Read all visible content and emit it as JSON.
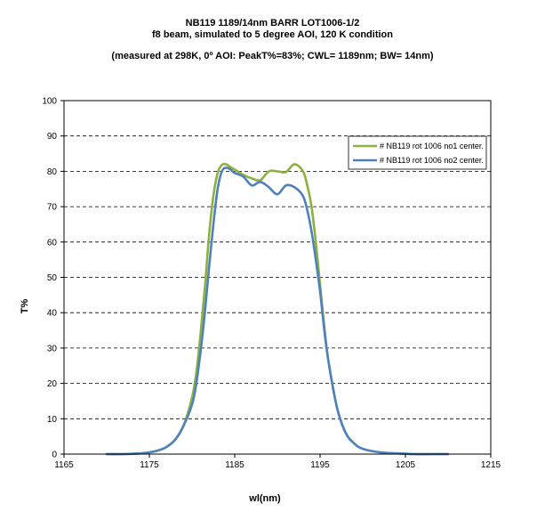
{
  "chart_data": {
    "type": "line",
    "title_lines": [
      "NB119  1189/14nm BARR LOT1006-1/2",
      "f8 beam, simulated to 5 degree AOI, 120 K condition",
      "(measured at 298K, 0º AOI:  PeakT%=83%; CWL= 1189nm; BW= 14nm)"
    ],
    "xlabel": "wl(nm)",
    "ylabel": "T%",
    "xlim": [
      1165,
      1215
    ],
    "ylim": [
      0,
      100
    ],
    "xticks": [
      1165,
      1175,
      1185,
      1195,
      1205,
      1215
    ],
    "yticks": [
      0,
      10,
      20,
      30,
      40,
      50,
      60,
      70,
      80,
      90,
      100
    ],
    "grid": "horizontal dashed",
    "legend_position": "top-right",
    "series": [
      {
        "name": "# NB119 rot 1006 no1 center.",
        "color": "#8DB13F",
        "x": [
          1170,
          1172,
          1174,
          1175,
          1176,
          1177,
          1178,
          1179,
          1180,
          1180.5,
          1181,
          1181.5,
          1182,
          1182.5,
          1183,
          1183.5,
          1184,
          1184.5,
          1185,
          1186,
          1187,
          1188,
          1189,
          1190,
          1191,
          1192,
          1193,
          1193.5,
          1194,
          1194.5,
          1195,
          1195.5,
          1196,
          1197,
          1198,
          1199,
          1200,
          1202,
          1204,
          1206,
          1208,
          1210
        ],
        "y": [
          0,
          0,
          0.2,
          0.5,
          1,
          2,
          4,
          8,
          16,
          23,
          34,
          47,
          62,
          73,
          79.5,
          81.8,
          82,
          81.2,
          80.5,
          79,
          78,
          77.5,
          80,
          80,
          79.8,
          82,
          80,
          76,
          70,
          60,
          48,
          36,
          26,
          13,
          6,
          3,
          1.5,
          0.5,
          0.2,
          0,
          0,
          0
        ]
      },
      {
        "name": "# NB119 rot 1006 no2 center.",
        "color": "#4F81BD",
        "x": [
          1170,
          1172,
          1174,
          1175,
          1176,
          1177,
          1178,
          1179,
          1180,
          1180.5,
          1181,
          1181.5,
          1182,
          1182.5,
          1183,
          1183.5,
          1184,
          1184.5,
          1185,
          1186,
          1187,
          1188,
          1189,
          1190,
          1191,
          1192,
          1193,
          1193.5,
          1194,
          1194.5,
          1195,
          1195.5,
          1196,
          1197,
          1198,
          1199,
          1200,
          1202,
          1204,
          1206,
          1208,
          1210
        ],
        "y": [
          0,
          0,
          0.2,
          0.5,
          1,
          2,
          4,
          8,
          14,
          20,
          29,
          40,
          53,
          65,
          75,
          80,
          81,
          80.5,
          79.5,
          78.5,
          76,
          77,
          75.5,
          73.5,
          76,
          75.5,
          73,
          69,
          63,
          55,
          46,
          35,
          26,
          13,
          6,
          3,
          1.5,
          0.5,
          0.2,
          0,
          0,
          0
        ]
      }
    ]
  }
}
